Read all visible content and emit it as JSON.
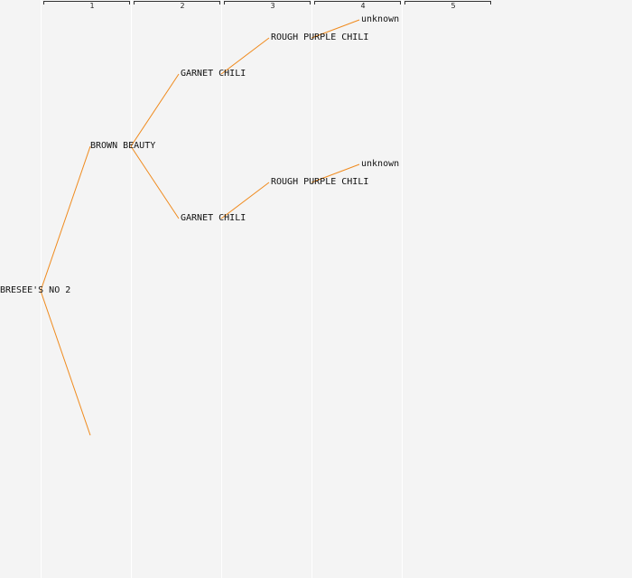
{
  "colors": {
    "edge": "#f08a1c",
    "background": "#f4f4f4",
    "text": "#111111"
  },
  "generations": [
    "1",
    "2",
    "3",
    "4",
    "5"
  ],
  "tree": {
    "label": "BRESEE'S NO 2",
    "children": [
      {
        "label": "BROWN BEAUTY",
        "children": [
          {
            "label": "GARNET CHILI",
            "children": [
              {
                "label": "ROUGH PURPLE CHILI",
                "children": [
                  {
                    "label": "unknown",
                    "children": []
                  }
                ]
              }
            ]
          },
          {
            "label": "GARNET CHILI",
            "children": [
              {
                "label": "ROUGH PURPLE CHILI",
                "children": [
                  {
                    "label": "unknown",
                    "children": []
                  }
                ]
              }
            ]
          }
        ]
      },
      {
        "label": "",
        "children": []
      }
    ]
  }
}
